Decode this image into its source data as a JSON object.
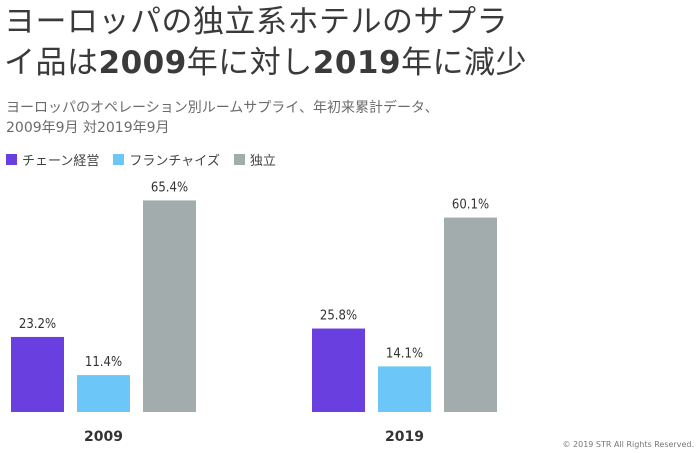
{
  "title": {
    "line1": "ヨーロッパの独立系ホテルのサプラ",
    "line2_a": "イ品は",
    "line2_b": "2009",
    "line2_c": "年に対し",
    "line2_d": "2019",
    "line2_e": "年に減少"
  },
  "subtitle": {
    "line1": "ヨーロッパのオペレーション別ルームサプライ、年初来累計データ、",
    "line2": "2009年9月 対2019年9月"
  },
  "copyright": "© 2019 STR All Rights Reserved.",
  "chart_data": {
    "type": "bar",
    "categories": [
      "2009",
      "2019"
    ],
    "series": [
      {
        "name": "チェーン経営",
        "color": "#6a3fe0",
        "values": [
          23.2,
          25.8
        ],
        "labels": [
          "23.2%",
          "25.8%"
        ]
      },
      {
        "name": "フランチャイズ",
        "color": "#6cc6f7",
        "values": [
          11.4,
          14.1
        ],
        "labels": [
          "11.4%",
          "14.1%"
        ]
      },
      {
        "name": "独立",
        "color": "#a3acad",
        "values": [
          65.4,
          60.1
        ],
        "labels": [
          "65.4%",
          "60.1%"
        ]
      }
    ],
    "ylim": [
      0,
      70
    ],
    "grid": false,
    "legend": "top-left"
  }
}
